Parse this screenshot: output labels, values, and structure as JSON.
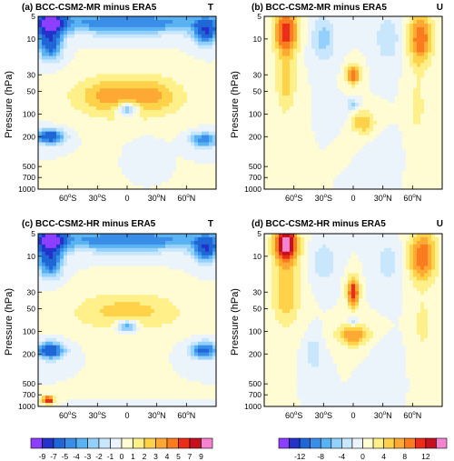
{
  "chart_data": [
    {
      "type": "heatmap",
      "title": "(a) BCC-CSM2-MR minus ERA5",
      "variable": "T",
      "ylabel": "Pressure (hPa)",
      "y_scale": "log",
      "ylim": [
        1000,
        5
      ],
      "xlim": [
        -90,
        90
      ],
      "yticks": [
        5,
        10,
        30,
        50,
        100,
        200,
        500,
        700,
        1000
      ],
      "xticks": [
        "60oS",
        "30oS",
        "0",
        "30oN",
        "60oN"
      ],
      "xtick_values": [
        -60,
        -30,
        0,
        30,
        60
      ],
      "blobs": [
        {
          "lat": 0,
          "p": 6,
          "rx": 95,
          "ry": 0.35,
          "v": -5
        },
        {
          "lat": -78,
          "p": 6,
          "rx": 14,
          "ry": 0.4,
          "v": -9
        },
        {
          "lat": -78,
          "p": 12,
          "rx": 12,
          "ry": 0.45,
          "v": -6
        },
        {
          "lat": 80,
          "p": 8,
          "rx": 12,
          "ry": 0.4,
          "v": -6
        },
        {
          "lat": 0,
          "p": 60,
          "rx": 60,
          "ry": 0.7,
          "v": 2.5
        },
        {
          "lat": -20,
          "p": 55,
          "rx": 22,
          "ry": 0.45,
          "v": 1.5
        },
        {
          "lat": 25,
          "p": 55,
          "rx": 22,
          "ry": 0.45,
          "v": 1.5
        },
        {
          "lat": 0,
          "p": 85,
          "rx": 10,
          "ry": 0.2,
          "v": -5
        },
        {
          "lat": -78,
          "p": 200,
          "rx": 14,
          "ry": 0.22,
          "v": -7
        },
        {
          "lat": 78,
          "p": 220,
          "rx": 14,
          "ry": 0.22,
          "v": -5
        },
        {
          "lat": 20,
          "p": 300,
          "rx": 12,
          "ry": 0.3,
          "v": -1
        }
      ]
    },
    {
      "type": "heatmap",
      "title": "(b) BCC-CSM2-MR minus ERA5",
      "variable": "U",
      "ylabel": "Pressure (hPa)",
      "y_scale": "log",
      "ylim": [
        1000,
        5
      ],
      "xlim": [
        -90,
        90
      ],
      "yticks": [
        5,
        10,
        30,
        50,
        100,
        200,
        500,
        700,
        1000
      ],
      "xticks": [
        "60oS",
        "30oS",
        "0",
        "30oN",
        "60oN"
      ],
      "xtick_values": [
        -60,
        -30,
        0,
        30,
        60
      ],
      "blobs": [
        {
          "lat": -68,
          "p": 8,
          "rx": 12,
          "ry": 0.7,
          "v": 12
        },
        {
          "lat": -68,
          "p": 40,
          "rx": 10,
          "ry": 0.9,
          "v": 5
        },
        {
          "lat": 68,
          "p": 10,
          "rx": 12,
          "ry": 0.8,
          "v": 10
        },
        {
          "lat": 65,
          "p": 80,
          "rx": 8,
          "ry": 0.9,
          "v": 3
        },
        {
          "lat": -30,
          "p": 10,
          "rx": 12,
          "ry": 0.7,
          "v": -5
        },
        {
          "lat": 35,
          "p": 10,
          "rx": 12,
          "ry": 0.7,
          "v": -4
        },
        {
          "lat": 0,
          "p": 30,
          "rx": 7,
          "ry": 0.3,
          "v": 10
        },
        {
          "lat": 0,
          "p": 75,
          "rx": 5,
          "ry": 0.15,
          "v": -6
        },
        {
          "lat": 10,
          "p": 130,
          "rx": 12,
          "ry": 0.35,
          "v": 6
        },
        {
          "lat": -15,
          "p": 100,
          "rx": 10,
          "ry": 0.3,
          "v": -2
        },
        {
          "lat": 30,
          "p": 300,
          "rx": 10,
          "ry": 0.4,
          "v": -2
        }
      ]
    },
    {
      "type": "heatmap",
      "title": "(c) BCC-CSM2-HR minus ERA5",
      "variable": "T",
      "ylabel": "Pressure (hPa)",
      "y_scale": "log",
      "ylim": [
        1000,
        5
      ],
      "xlim": [
        -90,
        90
      ],
      "yticks": [
        5,
        10,
        30,
        50,
        100,
        200,
        500,
        700,
        1000
      ],
      "xticks": [
        "60oS",
        "30oS",
        "0",
        "30oN",
        "60oN"
      ],
      "xtick_values": [
        -60,
        -30,
        0,
        30,
        60
      ],
      "blobs": [
        {
          "lat": 0,
          "p": 6,
          "rx": 95,
          "ry": 0.35,
          "v": -5
        },
        {
          "lat": -78,
          "p": 6,
          "rx": 14,
          "ry": 0.4,
          "v": -9
        },
        {
          "lat": -78,
          "p": 12,
          "rx": 12,
          "ry": 0.45,
          "v": -6
        },
        {
          "lat": 80,
          "p": 8,
          "rx": 12,
          "ry": 0.4,
          "v": -6
        },
        {
          "lat": 0,
          "p": 55,
          "rx": 55,
          "ry": 0.6,
          "v": 2.5
        },
        {
          "lat": 0,
          "p": 85,
          "rx": 10,
          "ry": 0.2,
          "v": -5
        },
        {
          "lat": -78,
          "p": 180,
          "rx": 14,
          "ry": 0.25,
          "v": -7
        },
        {
          "lat": 78,
          "p": 180,
          "rx": 14,
          "ry": 0.25,
          "v": -6
        },
        {
          "lat": -80,
          "p": 820,
          "rx": 6,
          "ry": 0.12,
          "v": 7
        },
        {
          "lat": 20,
          "p": 950,
          "rx": 40,
          "ry": 0.05,
          "v": -1
        }
      ]
    },
    {
      "type": "heatmap",
      "title": "(d) BCC-CSM2-HR minus ERA5",
      "variable": "U",
      "ylabel": "Pressure (hPa)",
      "y_scale": "log",
      "ylim": [
        1000,
        5
      ],
      "xlim": [
        -90,
        90
      ],
      "yticks": [
        5,
        10,
        30,
        50,
        100,
        200,
        500,
        700,
        1000
      ],
      "xticks": [
        "60oS",
        "30oS",
        "0",
        "30oN",
        "60oN"
      ],
      "xtick_values": [
        -60,
        -30,
        0,
        30,
        60
      ],
      "blobs": [
        {
          "lat": -68,
          "p": 7,
          "rx": 12,
          "ry": 0.55,
          "v": 16
        },
        {
          "lat": -68,
          "p": 30,
          "rx": 14,
          "ry": 1.0,
          "v": 6
        },
        {
          "lat": 70,
          "p": 10,
          "rx": 14,
          "ry": 0.8,
          "v": 10
        },
        {
          "lat": 70,
          "p": 80,
          "rx": 8,
          "ry": 0.8,
          "v": 3
        },
        {
          "lat": -30,
          "p": 12,
          "rx": 12,
          "ry": 0.6,
          "v": -4
        },
        {
          "lat": 35,
          "p": 12,
          "rx": 14,
          "ry": 0.7,
          "v": -3
        },
        {
          "lat": 0,
          "p": 30,
          "rx": 6,
          "ry": 0.45,
          "v": 12
        },
        {
          "lat": 0,
          "p": 75,
          "rx": 5,
          "ry": 0.15,
          "v": -6
        },
        {
          "lat": 0,
          "p": 110,
          "rx": 16,
          "ry": 0.35,
          "v": 8
        },
        {
          "lat": -40,
          "p": 200,
          "rx": 8,
          "ry": 0.5,
          "v": -4
        },
        {
          "lat": 30,
          "p": 250,
          "rx": 10,
          "ry": 0.5,
          "v": -2
        }
      ]
    }
  ],
  "colorbars": [
    {
      "labels": [
        "-9",
        "-7",
        "-5",
        "-4",
        "-3",
        "-2",
        "-1",
        "0",
        "1",
        "2",
        "3",
        "4",
        "5",
        "7",
        "9"
      ],
      "bounds": [
        -9,
        -7,
        -5,
        -4,
        -3,
        -2,
        -1,
        0,
        1,
        2,
        3,
        4,
        5,
        7,
        9
      ],
      "colors": [
        "#8d3fff",
        "#2333c9",
        "#1f66d6",
        "#3b8ee8",
        "#59b2f2",
        "#93d0fb",
        "#c9e7fc",
        "#ecf4fb",
        "#fffbd3",
        "#fff08a",
        "#ffd24a",
        "#ffa935",
        "#fb7c1f",
        "#eb2c1a",
        "#c4101f",
        "#f584d0"
      ]
    },
    {
      "labels": [
        "-12",
        "-8",
        "-4",
        "0",
        "4",
        "8",
        "12"
      ],
      "bounds": [
        -14,
        -12,
        -10,
        -8,
        -6,
        -4,
        -2,
        0,
        2,
        4,
        6,
        8,
        10,
        12,
        14
      ],
      "colors": [
        "#8d3fff",
        "#2333c9",
        "#1f66d6",
        "#3b8ee8",
        "#59b2f2",
        "#93d0fb",
        "#c9e7fc",
        "#ecf4fb",
        "#fffbd3",
        "#fff08a",
        "#ffd24a",
        "#ffa935",
        "#fb7c1f",
        "#eb2c1a",
        "#c4101f",
        "#f584d0"
      ]
    }
  ]
}
